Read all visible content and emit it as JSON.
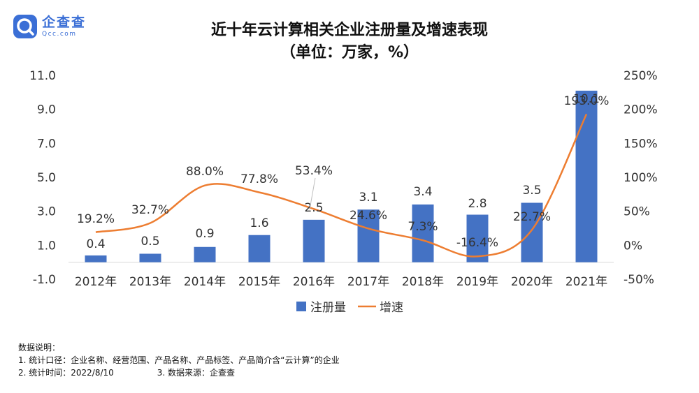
{
  "logo": {
    "name": "企查查",
    "sub": "Qcc.com"
  },
  "title_line1": "近十年云计算相关企业注册量及增速表现",
  "title_line2": "（单位：万家，%）",
  "notes": {
    "heading": "数据说明：",
    "line1": "1. 统计口径：企业名称、经营范围、产品名称、产品标签、产品简介含“云计算”的企业",
    "line2a": "2. 统计时间：2022/8/10",
    "line2b": "3. 数据来源：企查查"
  },
  "colors": {
    "bar": "#4472c4",
    "line": "#ed7d31",
    "axis": "#d9d9d9",
    "brand": "#3b6fd6"
  },
  "chart_data": {
    "type": "bar",
    "categories": [
      "2012年",
      "2013年",
      "2014年",
      "2015年",
      "2016年",
      "2017年",
      "2018年",
      "2019年",
      "2020年",
      "2021年"
    ],
    "series": [
      {
        "name": "注册量",
        "type": "bar",
        "axis": "left",
        "values": [
          0.4,
          0.5,
          0.9,
          1.6,
          2.5,
          3.1,
          3.4,
          2.8,
          3.5,
          10.1
        ],
        "labels": [
          "0.4",
          "0.5",
          "0.9",
          "1.6",
          "2.5",
          "3.1",
          "3.4",
          "2.8",
          "3.5",
          "10.1"
        ]
      },
      {
        "name": "增速",
        "type": "line",
        "axis": "right",
        "values": [
          19.2,
          32.7,
          88.0,
          77.8,
          53.4,
          24.6,
          7.3,
          -16.4,
          22.7,
          193.0
        ],
        "labels": [
          "19.2%",
          "32.7%",
          "88.0%",
          "77.8%",
          "53.4%",
          "24.6%",
          "7.3%",
          "-16.4%",
          "22.7%",
          "193.0%"
        ]
      }
    ],
    "y_left": {
      "ylim": [
        -1.0,
        11.0
      ],
      "ticks": [
        "11.0",
        "9.0",
        "7.0",
        "5.0",
        "3.0",
        "1.0",
        "-1.0"
      ]
    },
    "y_right": {
      "ylim": [
        -50,
        250
      ],
      "ticks": [
        "250%",
        "200%",
        "150%",
        "100%",
        "50%",
        "0%",
        "-50%"
      ]
    },
    "grid": false,
    "legend_position": "bottom"
  }
}
